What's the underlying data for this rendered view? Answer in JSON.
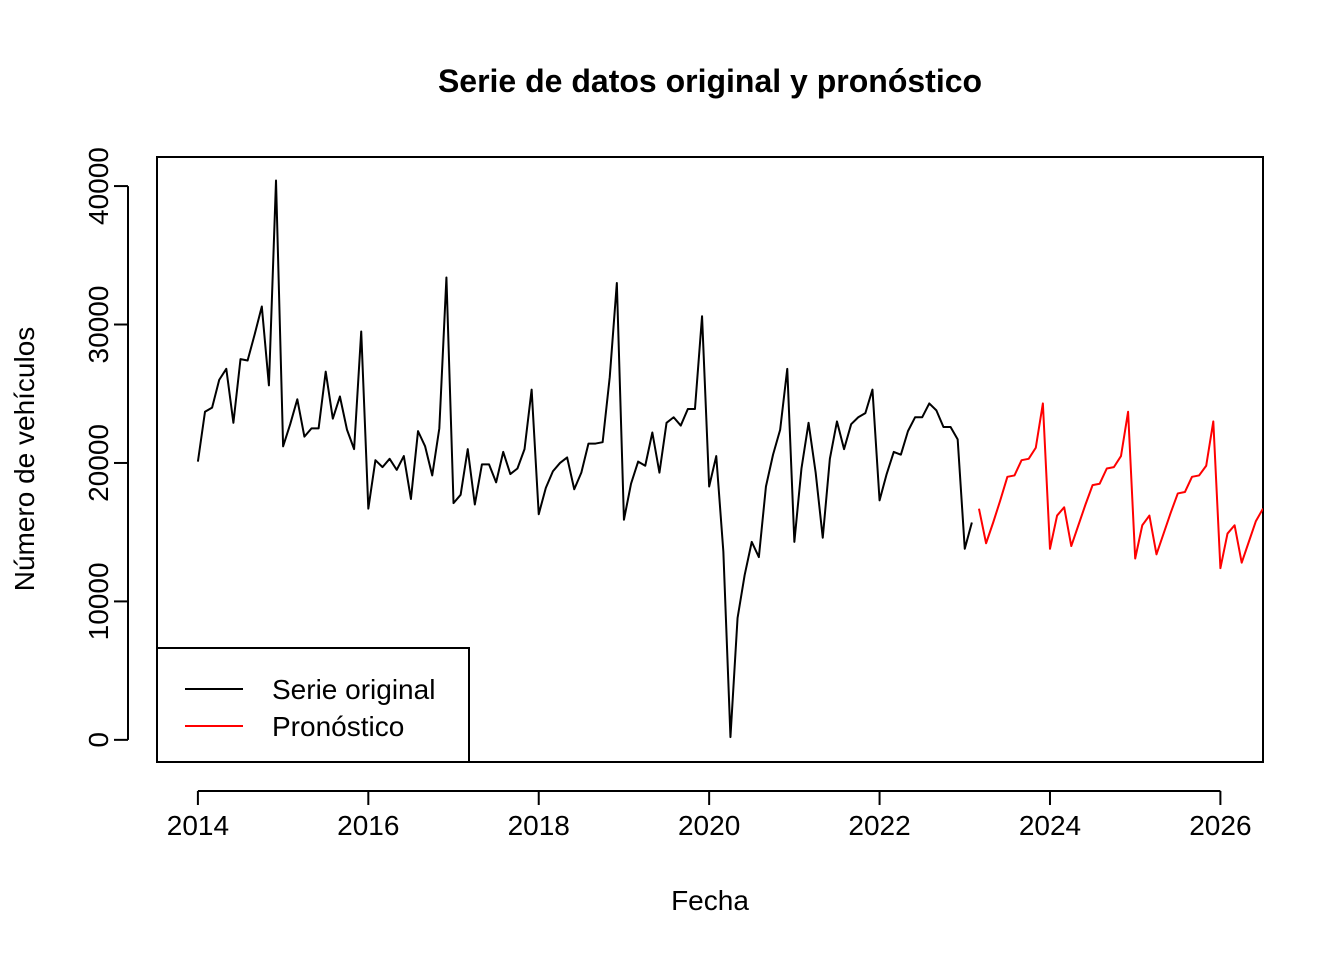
{
  "chart_data": {
    "type": "line",
    "title": "Serie de datos original y pronóstico",
    "xlabel": "Fecha",
    "ylabel": "Número de vehículos",
    "x_ticks": [
      2014,
      2016,
      2018,
      2020,
      2022,
      2024,
      2026
    ],
    "y_ticks": [
      0,
      10000,
      20000,
      30000,
      40000
    ],
    "xlim": [
      2013.52,
      2026.5
    ],
    "ylim": [
      -1600,
      42100
    ],
    "grid": false,
    "legend_position": "bottom-left",
    "series": [
      {
        "name": "Serie original",
        "color": "#000000",
        "start": 2014.0,
        "frequency": 12,
        "values": [
          20100,
          23700,
          24000,
          26000,
          26800,
          22900,
          27500,
          27400,
          29300,
          31300,
          25600,
          40400,
          21200,
          22800,
          24600,
          21900,
          22500,
          22500,
          26600,
          23200,
          24800,
          22400,
          21000,
          29500,
          16700,
          20200,
          19700,
          20300,
          19500,
          20500,
          17400,
          22300,
          21200,
          19100,
          22500,
          33400,
          17100,
          17700,
          21000,
          17000,
          19900,
          19900,
          18600,
          20800,
          19200,
          19600,
          21000,
          25300,
          16300,
          18200,
          19400,
          20000,
          20400,
          18100,
          19300,
          21400,
          21400,
          21500,
          26200,
          33000,
          15900,
          18500,
          20100,
          19800,
          22200,
          19300,
          22900,
          23300,
          22700,
          23900,
          23900,
          30600,
          18300,
          20500,
          13600,
          200,
          8800,
          11900,
          14300,
          13200,
          18300,
          20600,
          22400,
          26800,
          14300,
          19600,
          22900,
          19300,
          14600,
          20300,
          23000,
          21000,
          22800,
          23300,
          23600,
          25300,
          17300,
          19200,
          20800,
          20600,
          22300,
          23300,
          23300,
          24300,
          23800,
          22600,
          22600,
          21700,
          13800,
          15700
        ]
      },
      {
        "name": "Pronóstico",
        "color": "#ff0000",
        "start": 2023.1667,
        "frequency": 12,
        "values": [
          16700,
          14200,
          15700,
          17300,
          19000,
          19100,
          20200,
          20300,
          21100,
          24300,
          13800,
          16200,
          16800,
          14000,
          15500,
          17000,
          18400,
          18500,
          19600,
          19700,
          20500,
          23700,
          13100,
          15500,
          16200,
          13400,
          14900,
          16400,
          17800,
          17900,
          19000,
          19100,
          19800,
          23000,
          12400,
          14900,
          15500,
          12800,
          14300,
          15800,
          16700
        ]
      }
    ]
  }
}
